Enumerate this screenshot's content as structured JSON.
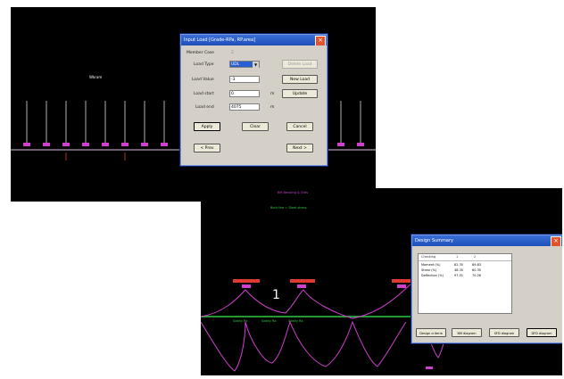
{
  "window1": {
    "canvas_label": "Wkram",
    "dialog": {
      "title": "Input Load [Grade-RPa, RP.area]",
      "member_case_label": "Member Case",
      "member_case_value": "2",
      "load_type_label": "Load Type",
      "load_type_value": "UDL",
      "load_value_label": "Load Value",
      "load_value_value": "-3",
      "load_start_label": "Load start",
      "load_start_value": "0",
      "load_end_label": "Load end",
      "load_end_value": "4075",
      "unit_m1": "m",
      "unit_m2": "m",
      "delete_label": "Delete Load",
      "new_load_label": "New Load",
      "update_label": "Update",
      "apply_label": "Apply",
      "clear_label": "Clear",
      "cancel_label": "Cancel",
      "prev_label": "< Prev",
      "next_label": "Next >"
    }
  },
  "window2": {
    "title_text": "BM Bending & Grds",
    "subtitle_text": "Bold line = Steel stress",
    "span_number": "1",
    "mid_labels": [
      "Sealty Ra",
      "Sealty Ra",
      "Sealty Ra"
    ],
    "dialog": {
      "title": "Design Summary",
      "col_headers": [
        "Checking",
        "1",
        "2"
      ],
      "rows": [
        {
          "name": "Moment (%)",
          "v1": "82.35",
          "v2": "89.83"
        },
        {
          "name": "Shear (%)",
          "v1": "48.35",
          "v2": "60.35"
        },
        {
          "name": "Deflection (%)",
          "v1": "97.51",
          "v2": "70.26"
        }
      ],
      "btn1": "Design criteria",
      "btn2": "BM diagram",
      "btn3": "SFD diagram",
      "btn4": "DFD diagram"
    }
  },
  "colors": {
    "magenta": "#d040d0",
    "green": "#2ecc40",
    "dialog_face": "#d4d0c8",
    "titlebar": "#2a5fd0"
  },
  "icons": [
    "close-icon",
    "dropdown-arrow-icon"
  ]
}
